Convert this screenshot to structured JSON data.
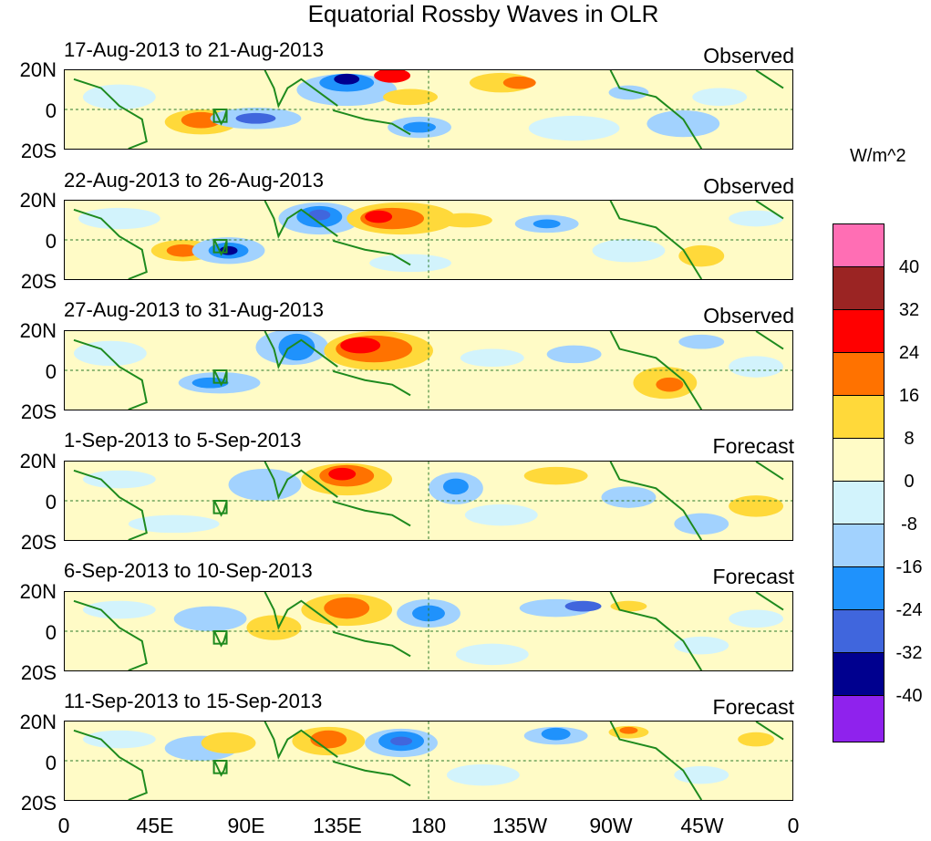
{
  "title": "Equatorial Rossby Waves in OLR",
  "panels": [
    {
      "date": "17-Aug-2013 to 21-Aug-2013",
      "kind": "Observed"
    },
    {
      "date": "22-Aug-2013 to 26-Aug-2013",
      "kind": "Observed"
    },
    {
      "date": "27-Aug-2013 to 31-Aug-2013",
      "kind": "Observed"
    },
    {
      "date": "1-Sep-2013 to 5-Sep-2013",
      "kind": "Forecast"
    },
    {
      "date": "6-Sep-2013 to 10-Sep-2013",
      "kind": "Forecast"
    },
    {
      "date": "11-Sep-2013 to 15-Sep-2013",
      "kind": "Forecast"
    }
  ],
  "lat_labels": [
    "20N",
    "0",
    "20S"
  ],
  "lon_labels": [
    "0",
    "45E",
    "90E",
    "135E",
    "180",
    "135W",
    "90W",
    "45W",
    "0"
  ],
  "colorbar": {
    "unit": "W/m^2",
    "labels": [
      "40",
      "32",
      "24",
      "16",
      "8",
      "0",
      "-8",
      "-16",
      "-24",
      "-32",
      "-40"
    ],
    "colors": [
      "#ff6eb4",
      "#9b2423",
      "#ff0000",
      "#ff7200",
      "#ffd93a",
      "#fffbc6",
      "#d2f3fc",
      "#a2d2fe",
      "#1f92fc",
      "#4066dd",
      "#00008f",
      "#8f22ed"
    ]
  }
}
